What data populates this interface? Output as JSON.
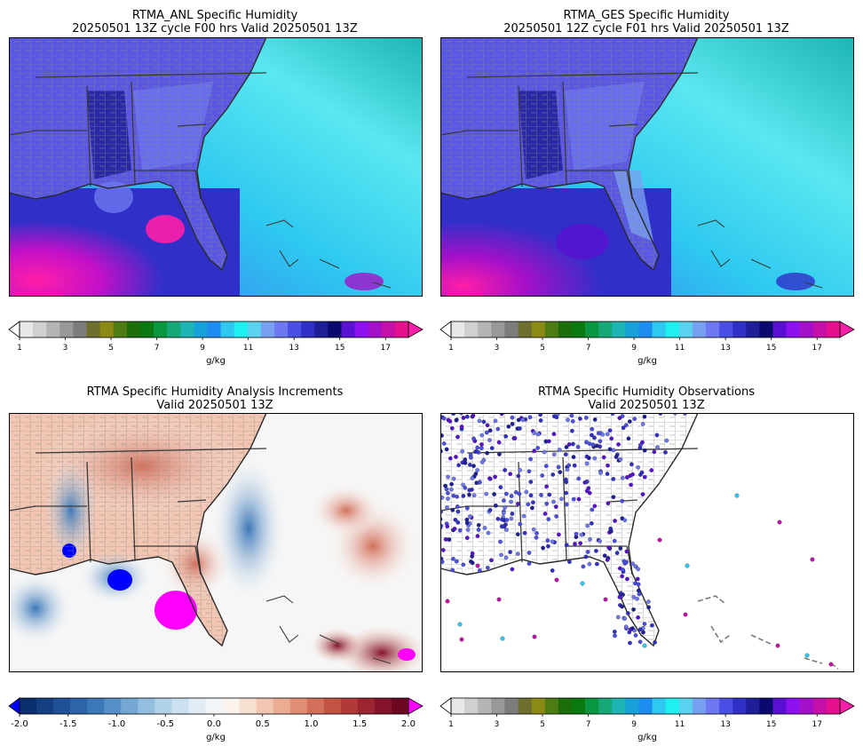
{
  "panels": [
    {
      "title_line1": "RTMA_ANL Specific Humidity",
      "title_line2": "20250501 13Z cycle F00 hrs Valid 20250501 13Z",
      "colorbar": {
        "type": "humidity",
        "unit": "g/kg",
        "ticks": [
          "1",
          "3",
          "5",
          "7",
          "9",
          "11",
          "13",
          "15",
          "17"
        ]
      }
    },
    {
      "title_line1": "RTMA_GES Specific Humidity",
      "title_line2": "20250501 12Z cycle F01 hrs Valid 20250501 13Z",
      "colorbar": {
        "type": "humidity",
        "unit": "g/kg",
        "ticks": [
          "1",
          "3",
          "5",
          "7",
          "9",
          "11",
          "13",
          "15",
          "17"
        ]
      }
    },
    {
      "title_line1": "RTMA Specific Humidity Analysis Increments",
      "title_line2": "Valid 20250501 13Z",
      "colorbar": {
        "type": "diverging",
        "unit": "g/kg",
        "ticks": [
          "-2.0",
          "-1.5",
          "-1.0",
          "-0.5",
          "0.0",
          "0.5",
          "1.0",
          "1.5",
          "2.0"
        ]
      }
    },
    {
      "title_line1": "RTMA Specific Humidity Observations",
      "title_line2": "Valid 20250501 13Z",
      "colorbar": {
        "type": "humidity",
        "unit": "g/kg",
        "ticks": [
          "1",
          "3",
          "5",
          "7",
          "9",
          "11",
          "13",
          "15",
          "17"
        ]
      }
    }
  ],
  "colors": {
    "humidity": [
      "#ffffff",
      "#e8e8e8",
      "#d0d0d0",
      "#b4b4b4",
      "#989898",
      "#7c7c7c",
      "#6e6e2e",
      "#8a8a14",
      "#4e7c14",
      "#1c6e0a",
      "#0a7a10",
      "#0a9640",
      "#16a878",
      "#1eb4b4",
      "#18a0d8",
      "#1e8cf0",
      "#2ec8f0",
      "#1ef0f0",
      "#5ad2f0",
      "#78a0f0",
      "#6e78f0",
      "#4a50e6",
      "#3030c8",
      "#1e1e96",
      "#0a0a6e",
      "#5a10d2",
      "#8c10f0",
      "#a410c8",
      "#c410a8",
      "#e6108c",
      "#ff1ea8"
    ],
    "diverging": [
      "#0000ff",
      "#0a2e6e",
      "#153f82",
      "#1f5196",
      "#2c64a8",
      "#3c78b8",
      "#5690c6",
      "#74a8d2",
      "#93bedf",
      "#b2d2e8",
      "#cde0ef",
      "#e2ecf4",
      "#f2f6f8",
      "#fbf3ee",
      "#f8e0d2",
      "#f2c6b2",
      "#ebac94",
      "#e08e76",
      "#d2705c",
      "#c25446",
      "#b23a36",
      "#9c2430",
      "#84142a",
      "#6c0822",
      "#ff00ff"
    ],
    "land": "#5a58e2",
    "ocean": "#26d8f4",
    "gulf": "#e01e9a"
  }
}
